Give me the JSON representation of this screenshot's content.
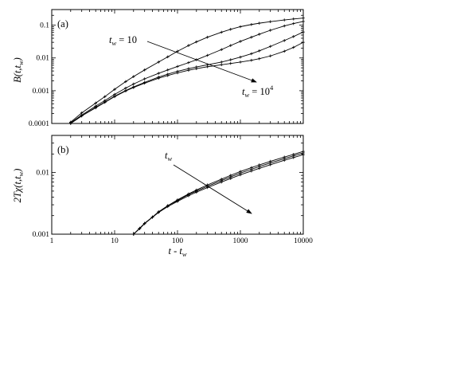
{
  "chart_data": [
    {
      "type": "line",
      "panel_label": "(a)",
      "ylabel_main": "B(t,t",
      "ylabel_sub": "w",
      "ylabel_tail": ")",
      "xscale": "log",
      "yscale": "log",
      "xlim": [
        1,
        10000
      ],
      "ylim": [
        0.0001,
        0.3
      ],
      "yticks": [
        {
          "v": 0.0001,
          "label": "0.0001"
        },
        {
          "v": 0.001,
          "label": "0.001"
        },
        {
          "v": 0.01,
          "label": "0.01"
        },
        {
          "v": 0.1,
          "label": "0.1"
        }
      ],
      "annotations": {
        "top_main": "t",
        "top_sub": "w",
        "top_tail": " = 10",
        "bottom_main": "t",
        "bottom_sub": "w",
        "bottom_tail": " = 10",
        "bottom_exp": "4"
      },
      "series": [
        {
          "x": [
            2,
            3,
            5,
            7,
            10,
            15,
            20,
            30,
            50,
            70,
            100,
            150,
            200,
            300,
            500,
            700,
            1000,
            1500,
            2000,
            3000,
            5000,
            7000,
            10000
          ],
          "y": [
            0.00011,
            0.00021,
            0.00042,
            0.00066,
            0.0011,
            0.0019,
            0.0027,
            0.0043,
            0.0075,
            0.0108,
            0.016,
            0.024,
            0.031,
            0.043,
            0.061,
            0.075,
            0.09,
            0.105,
            0.115,
            0.128,
            0.144,
            0.155,
            0.165
          ]
        },
        {
          "x": [
            2,
            3,
            5,
            7,
            10,
            15,
            20,
            30,
            50,
            70,
            100,
            150,
            200,
            300,
            500,
            700,
            1000,
            1500,
            2000,
            3000,
            5000,
            7000,
            10000
          ],
          "y": [
            0.000105,
            0.00018,
            0.00034,
            0.0005,
            0.00077,
            0.0012,
            0.0016,
            0.0023,
            0.0034,
            0.0043,
            0.0055,
            0.0072,
            0.0088,
            0.012,
            0.018,
            0.024,
            0.032,
            0.043,
            0.053,
            0.07,
            0.095,
            0.112,
            0.13
          ]
        },
        {
          "x": [
            2,
            3,
            5,
            7,
            10,
            15,
            20,
            30,
            50,
            70,
            100,
            150,
            200,
            300,
            500,
            700,
            1000,
            1500,
            2000,
            3000,
            5000,
            7000,
            10000
          ],
          "y": [
            0.0001,
            0.00017,
            0.00031,
            0.00045,
            0.00068,
            0.00101,
            0.0013,
            0.0018,
            0.0026,
            0.0032,
            0.0039,
            0.0047,
            0.0053,
            0.0062,
            0.0075,
            0.0088,
            0.0106,
            0.0135,
            0.0165,
            0.0225,
            0.034,
            0.045,
            0.062
          ]
        },
        {
          "x": [
            2,
            3,
            5,
            7,
            10,
            15,
            20,
            30,
            50,
            70,
            100,
            150,
            200,
            300,
            500,
            700,
            1000,
            1500,
            2000,
            3000,
            5000,
            7000,
            10000
          ],
          "y": [
            0.0001,
            0.00017,
            0.0003,
            0.00044,
            0.00066,
            0.00098,
            0.00125,
            0.0017,
            0.0024,
            0.0029,
            0.0035,
            0.0042,
            0.0047,
            0.0054,
            0.0062,
            0.0068,
            0.0075,
            0.0085,
            0.0095,
            0.0115,
            0.016,
            0.021,
            0.03
          ]
        }
      ]
    },
    {
      "type": "line",
      "panel_label": "(b)",
      "ylabel_main": "2Tχ(t,t",
      "ylabel_sub": "w",
      "ylabel_tail": ")",
      "xlabel_main": "t - t",
      "xlabel_sub": "w",
      "xscale": "log",
      "yscale": "log",
      "xlim": [
        1,
        10000
      ],
      "ylim": [
        0.001,
        0.04
      ],
      "xticks": [
        {
          "v": 1,
          "label": "1"
        },
        {
          "v": 10,
          "label": "10"
        },
        {
          "v": 100,
          "label": "100"
        },
        {
          "v": 1000,
          "label": "1000"
        },
        {
          "v": 10000,
          "label": "10000"
        }
      ],
      "yticks": [
        {
          "v": 0.001,
          "label": "0.001"
        },
        {
          "v": 0.01,
          "label": "0.01"
        }
      ],
      "annotations": {
        "arrow_main": "t",
        "arrow_sub": "w"
      },
      "series": [
        {
          "x": [
            20,
            25,
            30,
            40,
            50,
            70,
            100,
            150,
            200,
            300,
            500,
            700,
            1000,
            1500,
            2000,
            3000,
            5000,
            7000,
            10000
          ],
          "y": [
            0.001,
            0.00125,
            0.0015,
            0.0019,
            0.0023,
            0.0029,
            0.0036,
            0.0045,
            0.0052,
            0.0063,
            0.0078,
            0.009,
            0.0104,
            0.012,
            0.0133,
            0.0152,
            0.0178,
            0.0197,
            0.022
          ]
        },
        {
          "x": [
            20,
            25,
            30,
            40,
            50,
            70,
            100,
            150,
            200,
            300,
            500,
            700,
            1000,
            1500,
            2000,
            3000,
            5000,
            7000,
            10000
          ],
          "y": [
            0.001,
            0.00124,
            0.0015,
            0.0019,
            0.0023,
            0.0029,
            0.0035,
            0.0044,
            0.005,
            0.006,
            0.0074,
            0.0085,
            0.0098,
            0.0113,
            0.0125,
            0.0143,
            0.0168,
            0.0186,
            0.0208
          ]
        },
        {
          "x": [
            20,
            25,
            30,
            40,
            50,
            70,
            100,
            150,
            200,
            300,
            500,
            700,
            1000,
            1500,
            2000,
            3000,
            5000,
            7000,
            10000
          ],
          "y": [
            0.001,
            0.00123,
            0.00148,
            0.00188,
            0.00225,
            0.0028,
            0.0034,
            0.0042,
            0.0048,
            0.0057,
            0.007,
            0.008,
            0.0092,
            0.0106,
            0.0117,
            0.0134,
            0.0158,
            0.0175,
            0.0195
          ]
        }
      ]
    }
  ]
}
